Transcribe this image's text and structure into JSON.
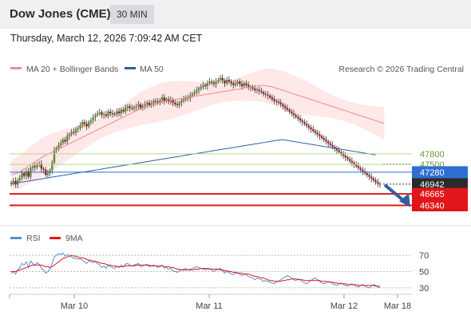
{
  "header": {
    "title": "Dow Jones (CME)",
    "timeframe": "30 MIN",
    "datetime": "Thursday, March 12, 2026 7:09:42 AM CET"
  },
  "chart_data": [
    {
      "type": "candlestick",
      "legend": [
        {
          "name": "MA 20 + Bollinger Bands",
          "color": "#f08a8a"
        },
        {
          "name": "MA 50",
          "color": "#2f5f9f"
        }
      ],
      "credit": "Research © 2026 Trading Central",
      "levels": [
        {
          "value": 47800,
          "label": "47800",
          "color": "#b5d88a",
          "style": "plain"
        },
        {
          "value": 47500,
          "label": "47500",
          "color": "#b5d88a",
          "style": "plain"
        },
        {
          "value": 47280,
          "label": "47280",
          "color": "#2f6fd0",
          "style": "boxed"
        },
        {
          "value": 46942,
          "label": "46942",
          "color": "#2b2b2b",
          "style": "boxed",
          "current": true
        },
        {
          "value": 46665,
          "label": "46665",
          "color": "#e0161b",
          "style": "boxed"
        },
        {
          "value": 46340,
          "label": "46340",
          "color": "#e0161b",
          "style": "boxed"
        }
      ],
      "x_ticks": [
        "Mar 10",
        "Mar 11",
        "Mar 12",
        "Mar 18"
      ],
      "close": [
        46980,
        47030,
        46930,
        47050,
        47120,
        47250,
        47180,
        47300,
        47150,
        47400,
        47450,
        47420,
        47500,
        47520,
        47380,
        47350,
        47200,
        47250,
        47330,
        47550,
        47900,
        47960,
        48050,
        48100,
        48200,
        48150,
        48300,
        48350,
        48420,
        48400,
        48500,
        48520,
        48600,
        48700,
        48650,
        48580,
        48700,
        48750,
        48830,
        48900,
        48950,
        48980,
        48900,
        48920,
        48880,
        49000,
        48950,
        48930,
        48920,
        49000,
        48950,
        49050,
        49000,
        49100,
        49150,
        49100,
        49080,
        49120,
        49150,
        49200,
        49100,
        49150,
        49200,
        49250,
        49180,
        49220,
        49300,
        49280,
        49250,
        49320,
        49400,
        49300,
        49350,
        49280,
        49330,
        49250,
        49200,
        49180,
        49250,
        49300,
        49350,
        49400,
        49380,
        49450,
        49500,
        49550,
        49600,
        49650,
        49700,
        49750,
        49720,
        49800,
        49850,
        49820,
        49780,
        49850,
        49900,
        49950,
        49880,
        49800,
        49900,
        49850,
        49800,
        49750,
        49800,
        49850,
        49780,
        49720,
        49800,
        49750,
        49700,
        49680,
        49650,
        49600,
        49620,
        49580,
        49550,
        49500,
        49480,
        49450,
        49400,
        49350,
        49300,
        49280,
        49250,
        49200,
        49150,
        49100,
        49050,
        49000,
        48950,
        48900,
        48850,
        48800,
        48750,
        48700,
        48650,
        48600,
        48550,
        48500,
        48450,
        48400,
        48350,
        48300,
        48250,
        48200,
        48150,
        48100,
        48050,
        48000,
        47950,
        47900,
        47850,
        47800,
        47750,
        47700,
        47650,
        47600,
        47550,
        47500,
        47450,
        47400,
        47350,
        47300,
        47250,
        47200,
        47150,
        47100,
        47050,
        47000,
        46950,
        46942
      ],
      "ma20": [
        47200,
        47220,
        47240,
        47260,
        47290,
        47330,
        47370,
        47410,
        47450,
        47490,
        47530,
        47570,
        47610,
        47650,
        47690,
        47730,
        47760,
        47790,
        47820,
        47850,
        47880,
        47910,
        47940,
        47970,
        48000,
        48030,
        48060,
        48090,
        48120,
        48150,
        48180,
        48210,
        48240,
        48270,
        48300,
        48330,
        48360,
        48390,
        48420,
        48450,
        48480,
        48510,
        48540,
        48570,
        48600,
        48630,
        48660,
        48690,
        48720,
        48750,
        48780,
        48810,
        48840,
        48870,
        48900,
        48930,
        48960,
        48990,
        49020,
        49050,
        49080,
        49100,
        49120,
        49140,
        49160,
        49180,
        49200,
        49220,
        49240,
        49260,
        49280,
        49290,
        49300,
        49310,
        49320,
        49330,
        49340,
        49350,
        49360,
        49370,
        49380,
        49390,
        49400,
        49410,
        49420,
        49430,
        49440,
        49450,
        49460,
        49470,
        49480,
        49490,
        49500,
        49510,
        49520,
        49530,
        49540,
        49550,
        49560,
        49570,
        49580,
        49590,
        49600,
        49610,
        49620,
        49630,
        49640,
        49650,
        49660,
        49670,
        49680,
        49690,
        49700,
        49710,
        49720,
        49730,
        49740,
        49740,
        49730,
        49720,
        49710,
        49700,
        49680,
        49660,
        49640,
        49620,
        49600,
        49580,
        49560,
        49540,
        49520,
        49500,
        49480,
        49460,
        49440,
        49420,
        49400,
        49380,
        49360,
        49340,
        49320,
        49300,
        49280,
        49260,
        49240,
        49220,
        49200,
        49180,
        49160,
        49140,
        49120,
        49100,
        49080,
        49060,
        49040,
        49020,
        49000,
        48980,
        48960,
        48940,
        48920,
        48900,
        48880,
        48860,
        48840,
        48820,
        48800,
        48780,
        48760,
        48740,
        48720,
        48700,
        48680,
        48660
      ],
      "ma50": [
        46950,
        46960,
        46970,
        46980,
        46990,
        47000,
        47010,
        47020,
        47030,
        47040,
        47050,
        47060,
        47070,
        47080,
        47090,
        47100,
        47110,
        47120,
        47130,
        47140,
        47150,
        47160,
        47170,
        47180,
        47190,
        47200,
        47210,
        47220,
        47230,
        47240,
        47250,
        47260,
        47270,
        47280,
        47290,
        47300,
        47310,
        47320,
        47330,
        47340,
        47350,
        47360,
        47370,
        47380,
        47390,
        47400,
        47410,
        47420,
        47430,
        47440,
        47450,
        47460,
        47470,
        47480,
        47490,
        47500,
        47510,
        47520,
        47530,
        47540,
        47550,
        47560,
        47570,
        47580,
        47590,
        47600,
        47610,
        47620,
        47630,
        47640,
        47650,
        47660,
        47670,
        47680,
        47690,
        47700,
        47710,
        47720,
        47730,
        47740,
        47750,
        47760,
        47770,
        47780,
        47790,
        47800,
        47810,
        47820,
        47830,
        47840,
        47850,
        47860,
        47870,
        47880,
        47890,
        47900,
        47910,
        47920,
        47930,
        47940,
        47950,
        47960,
        47970,
        47980,
        47990,
        48000,
        48010,
        48020,
        48030,
        48040,
        48050,
        48060,
        48070,
        48080,
        48090,
        48100,
        48110,
        48120,
        48130,
        48140,
        48150,
        48160,
        48170,
        48180,
        48190,
        48200,
        48200,
        48190,
        48180,
        48170,
        48160,
        48150,
        48140,
        48130,
        48120,
        48110,
        48100,
        48090,
        48080,
        48070,
        48060,
        48050,
        48040,
        48030,
        48020,
        48010,
        48000,
        47990,
        47980,
        47970,
        47960,
        47950,
        47940,
        47930,
        47920,
        47910,
        47900,
        47890,
        47880,
        47870,
        47860,
        47850,
        47840,
        47830,
        47820,
        47810,
        47800,
        47790,
        47780,
        47770
      ]
    },
    {
      "type": "line",
      "legend": [
        {
          "name": "RSI",
          "color": "#5b8fd6"
        },
        {
          "name": "9MA",
          "color": "#e0161b"
        }
      ],
      "y_ticks": [
        70,
        50,
        30
      ],
      "ylim": [
        25,
        78
      ],
      "rsi": [
        48,
        50,
        47,
        52,
        55,
        60,
        58,
        62,
        55,
        63,
        60,
        58,
        61,
        59,
        54,
        52,
        48,
        50,
        53,
        60,
        68,
        70,
        72,
        71,
        73,
        69,
        71,
        70,
        68,
        66,
        67,
        65,
        66,
        64,
        62,
        60,
        63,
        62,
        61,
        63,
        60,
        58,
        55,
        57,
        54,
        58,
        56,
        55,
        54,
        57,
        55,
        58,
        56,
        59,
        60,
        58,
        57,
        58,
        59,
        60,
        56,
        57,
        58,
        59,
        56,
        57,
        58,
        57,
        55,
        56,
        58,
        54,
        55,
        53,
        54,
        51,
        50,
        49,
        51,
        52,
        53,
        54,
        52,
        53,
        54,
        55,
        56,
        55,
        54,
        53,
        52,
        53,
        54,
        52,
        50,
        52,
        53,
        54,
        51,
        48,
        50,
        49,
        47,
        46,
        48,
        49,
        47,
        45,
        47,
        46,
        44,
        43,
        42,
        40,
        42,
        41,
        40,
        38,
        39,
        38,
        37,
        36,
        35,
        37,
        38,
        40,
        42,
        43,
        45,
        44,
        42,
        40,
        39,
        41,
        40,
        38,
        36,
        35,
        37,
        39,
        41,
        42,
        40,
        38,
        36,
        35,
        36,
        38,
        37,
        35,
        34,
        33,
        35,
        36,
        34,
        33,
        32,
        34,
        35,
        33,
        32,
        31,
        33,
        34,
        32,
        31,
        30,
        32,
        34,
        33,
        31,
        30
      ],
      "ma9": [
        50,
        50,
        50,
        51,
        52,
        53,
        54,
        55,
        56,
        57,
        58,
        58,
        58,
        58,
        58,
        57,
        56,
        56,
        55,
        56,
        58,
        60,
        62,
        64,
        66,
        67,
        68,
        69,
        70,
        69,
        69,
        68,
        67,
        67,
        66,
        65,
        64,
        64,
        63,
        62,
        62,
        61,
        60,
        60,
        59,
        58,
        58,
        57,
        57,
        56,
        56,
        56,
        56,
        57,
        57,
        57,
        57,
        57,
        58,
        58,
        58,
        58,
        58,
        58,
        58,
        57,
        57,
        57,
        57,
        57,
        57,
        56,
        56,
        56,
        55,
        55,
        54,
        53,
        53,
        52,
        52,
        52,
        52,
        52,
        52,
        53,
        53,
        53,
        54,
        54,
        54,
        54,
        53,
        53,
        53,
        53,
        53,
        52,
        52,
        51,
        51,
        50,
        50,
        49,
        49,
        48,
        48,
        48,
        47,
        47,
        47,
        46,
        45,
        44,
        44,
        43,
        42,
        42,
        41,
        40,
        39,
        39,
        38,
        38,
        38,
        38,
        39,
        39,
        40,
        40,
        41,
        41,
        41,
        40,
        40,
        40,
        39,
        39,
        39,
        39,
        39,
        39,
        39,
        39,
        38,
        38,
        38,
        37,
        37,
        37,
        36,
        36,
        35,
        35,
        35,
        35,
        34,
        34,
        34,
        34,
        34,
        33,
        33,
        33,
        33,
        33,
        33,
        33,
        33,
        32,
        32,
        32
      ]
    }
  ]
}
